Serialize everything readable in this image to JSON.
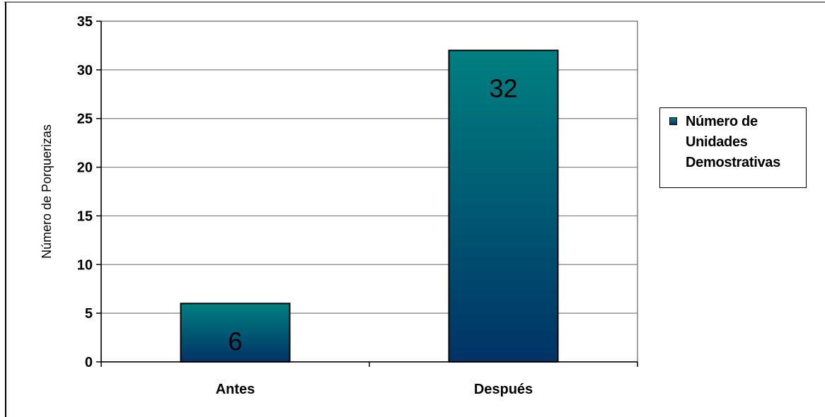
{
  "chart_data": {
    "type": "bar",
    "categories": [
      "Antes",
      "Después"
    ],
    "series": [
      {
        "name": "Número de Unidades Demostrativas",
        "values": [
          6,
          32
        ]
      }
    ],
    "data_labels": [
      "6",
      "32"
    ],
    "title": "",
    "xlabel": "",
    "ylabel": "Número de Porquerizas",
    "ylim": [
      0,
      35
    ],
    "yticks": [
      0,
      5,
      10,
      15,
      20,
      25,
      30,
      35
    ],
    "ytick_labels": [
      "0",
      "5",
      "10",
      "15",
      "20",
      "25",
      "30",
      "35"
    ],
    "grid": true,
    "legend_position": "right"
  },
  "colors": {
    "bar_top": "#008080",
    "bar_bottom": "#003366",
    "gridline": "#808080",
    "plot_border": "#808080"
  }
}
